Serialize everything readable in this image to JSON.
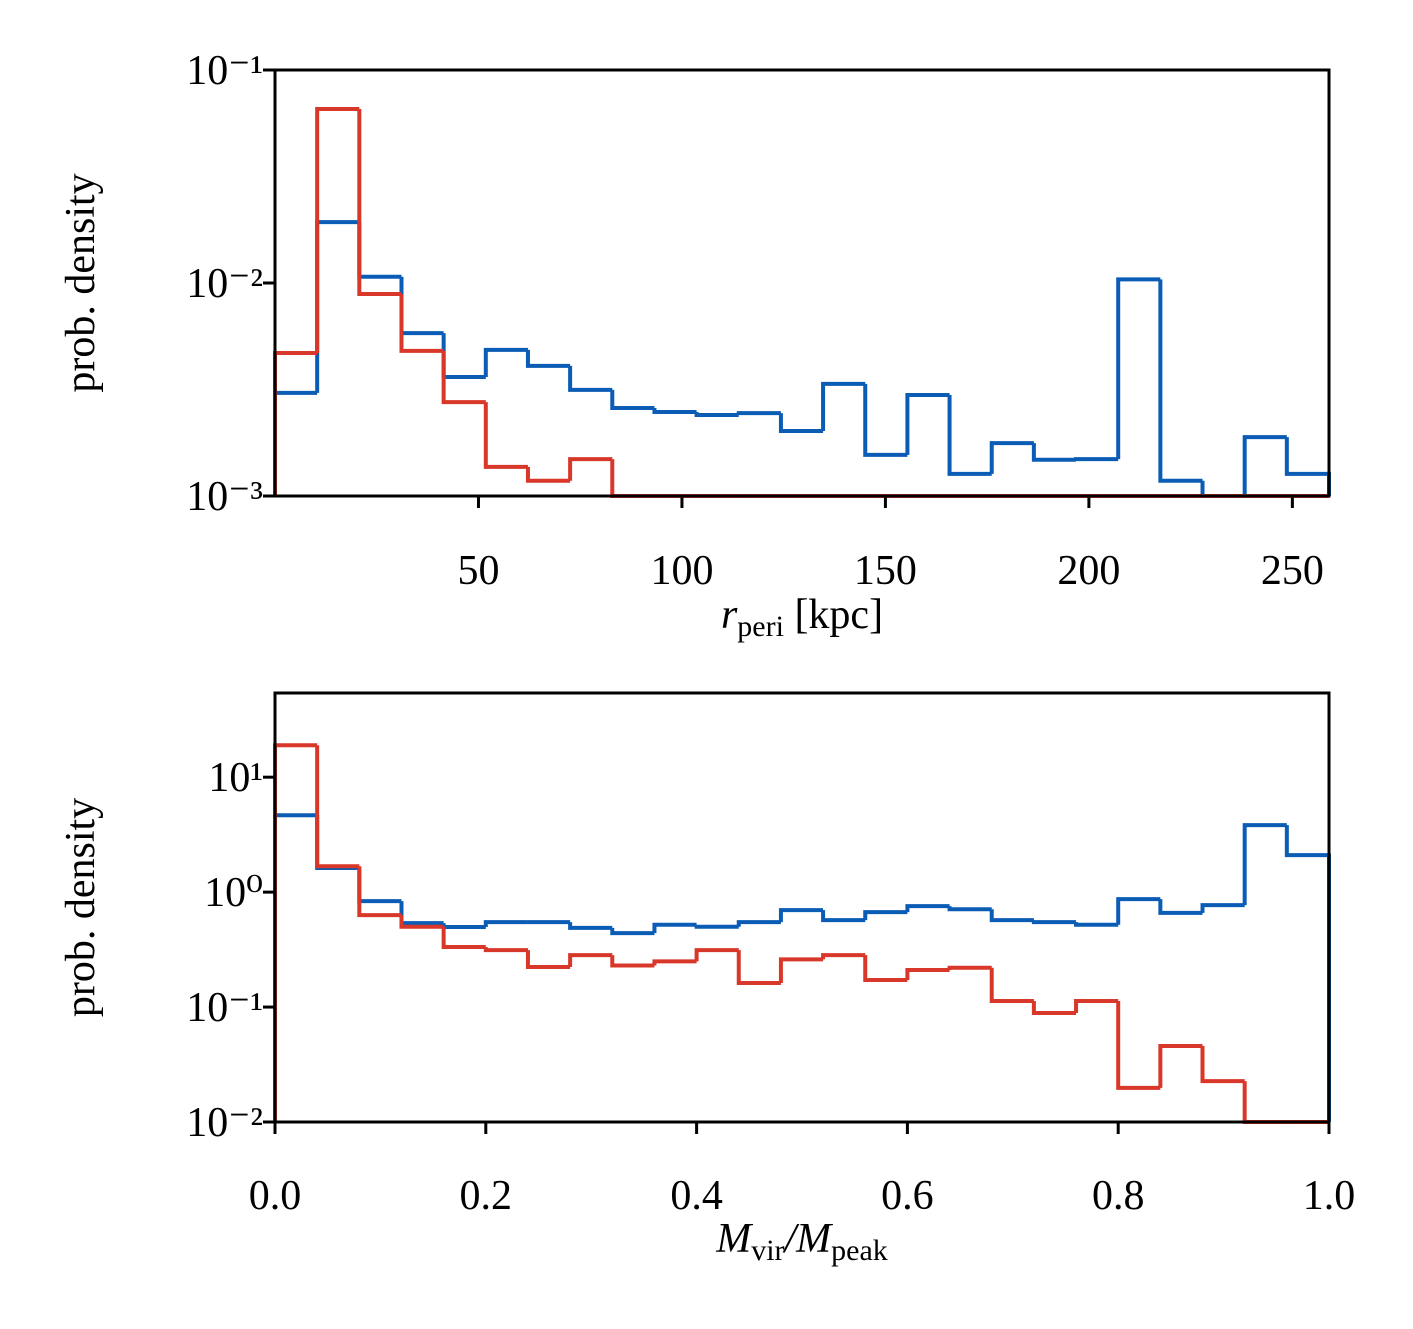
{
  "chart_data": [
    {
      "type": "histogram",
      "ylabel": "prob. density",
      "xlabel": [
        "r",
        "peri",
        " [kpc]"
      ],
      "log_y": true,
      "bins": [
        0,
        10.36,
        20.72,
        31.08,
        41.44,
        51.8,
        62.16,
        72.52,
        82.88,
        93.24,
        103.6,
        113.96,
        124.32,
        134.68,
        145.04,
        155.4,
        165.76,
        176.12,
        186.48,
        196.84,
        207.2,
        217.56,
        227.92,
        238.28,
        248.64,
        259
      ],
      "series": [
        {
          "color": "#0a5cb5",
          "values": [
            0.00305,
            0.0193,
            0.0107,
            0.00582,
            0.00362,
            0.00485,
            0.00408,
            0.00315,
            0.00259,
            0.00248,
            0.0024,
            0.00245,
            0.00202,
            0.00336,
            0.00156,
            0.00298,
            0.00127,
            0.00177,
            0.00148,
            0.00149,
            0.0104,
            0.00118,
            0,
            0.00189,
            0.00127
          ]
        },
        {
          "color": "#d9372a",
          "values": [
            0.00469,
            0.0656,
            0.00888,
            0.0048,
            0.00276,
            0.00137,
            0.00118,
            0.00149,
            0,
            0,
            0,
            0,
            0,
            0,
            0,
            0,
            0,
            0,
            0,
            0,
            0,
            0,
            0,
            0,
            0
          ]
        }
      ],
      "xlim": [
        0,
        259
      ],
      "ylim": [
        0.001,
        0.1
      ],
      "xticks": [
        50,
        100,
        150,
        200,
        250
      ],
      "yticks": [
        {
          "value": 0.001,
          "label": "10⁻³"
        },
        {
          "value": 0.01,
          "label": "10⁻²"
        },
        {
          "value": 0.1,
          "label": "10⁻¹"
        }
      ]
    },
    {
      "type": "histogram",
      "ylabel": "prob. density",
      "xlabel": [
        "M",
        "vir",
        "/M",
        "peak"
      ],
      "log_y": true,
      "bins": [
        0,
        0.04,
        0.08,
        0.12,
        0.16,
        0.2,
        0.24,
        0.28,
        0.32,
        0.36,
        0.4,
        0.44,
        0.48,
        0.52,
        0.56,
        0.6,
        0.64,
        0.68,
        0.72,
        0.76,
        0.8,
        0.84,
        0.88,
        0.92,
        0.96,
        1.0
      ],
      "series": [
        {
          "color": "#0a5cb5",
          "values": [
            4.67,
            1.62,
            0.835,
            0.537,
            0.497,
            0.548,
            0.548,
            0.488,
            0.44,
            0.52,
            0.5,
            0.548,
            0.697,
            0.57,
            0.67,
            0.755,
            0.71,
            0.57,
            0.548,
            0.52,
            0.87,
            0.66,
            0.77,
            3.83,
            2.1
          ]
        },
        {
          "color": "#d9372a",
          "values": [
            18.97,
            1.68,
            0.63,
            0.5,
            0.333,
            0.313,
            0.223,
            0.283,
            0.23,
            0.25,
            0.313,
            0.162,
            0.26,
            0.283,
            0.172,
            0.21,
            0.22,
            0.113,
            0.0888,
            0.113,
            0.0198,
            0.0458,
            0.0227,
            0,
            0
          ]
        }
      ],
      "xlim": [
        0,
        1.0
      ],
      "ylim": [
        0.01,
        54
      ],
      "xticks": [
        {
          "value": 0,
          "label": "0.0"
        },
        0.2,
        0.4,
        0.6,
        0.8,
        {
          "value": 1.0,
          "label": "1.0"
        }
      ],
      "yticks": [
        {
          "value": 0.01,
          "label": "10⁻²"
        },
        {
          "value": 0.1,
          "label": "10⁻¹"
        },
        {
          "value": 1,
          "label": "10⁰"
        },
        {
          "value": 10,
          "label": "10¹"
        }
      ]
    }
  ]
}
